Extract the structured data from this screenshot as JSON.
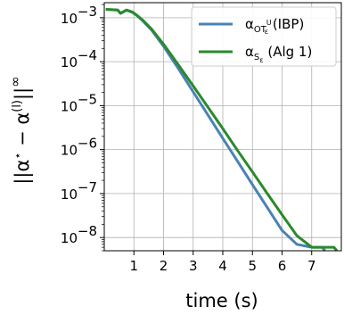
{
  "chart_data": {
    "type": "line",
    "xlabel": "time (s)",
    "ylabel": "||α* − α^(l)||∞",
    "yscale": "log",
    "xlim": [
      0,
      8
    ],
    "ylim": [
      5e-09,
      0.0022
    ],
    "xticks": [
      1,
      2,
      3,
      4,
      5,
      6,
      7
    ],
    "xtick_labels": [
      "1",
      "2",
      "3",
      "4",
      "5",
      "6",
      "7"
    ],
    "yticks": [
      1e-08,
      1e-07,
      1e-06,
      1e-05,
      0.0001,
      0.001
    ],
    "ytick_labels": [
      "10",
      "10",
      "10",
      "10",
      "10",
      "10"
    ],
    "ytick_exponents": [
      "−8",
      "−7",
      "−6",
      "−5",
      "−4",
      "−3"
    ],
    "grid": true,
    "legend_position": "top-right",
    "series": [
      {
        "name": "α_OT (IBP)",
        "legend_label_main": "α",
        "legend_label_sub": "OT",
        "legend_label_subsub": "ε",
        "legend_label_sup": "U",
        "legend_label_suffix": " (IBP)",
        "color": "#4a82b4",
        "x": [
          0.05,
          0.45,
          0.55,
          0.75,
          0.95,
          1.1,
          1.3,
          1.6,
          2.0,
          2.5,
          3.0,
          3.5,
          4.0,
          4.5,
          5.0,
          5.5,
          6.0,
          6.5,
          7.0,
          7.35,
          7.45
        ],
        "y": [
          0.00155,
          0.0015,
          0.00125,
          0.00148,
          0.00132,
          0.00112,
          0.00085,
          0.00052,
          0.000225,
          7e-05,
          2.05e-05,
          6.1e-06,
          1.8e-06,
          5.4e-07,
          1.6e-07,
          4.8e-08,
          1.45e-08,
          7e-09,
          6e-09,
          6e-09,
          5e-09
        ]
      },
      {
        "name": "α_Sε (Alg 1)",
        "legend_label_main": "α",
        "legend_label_sub": "S",
        "legend_label_subsub": "ε",
        "legend_label_sup": "",
        "legend_label_suffix": " (Alg 1)",
        "color": "#2a8a2a",
        "x": [
          0.05,
          0.45,
          0.55,
          0.75,
          0.95,
          1.1,
          1.3,
          1.6,
          2.0,
          2.5,
          3.0,
          3.5,
          4.0,
          4.5,
          5.0,
          5.5,
          6.0,
          6.5,
          7.0,
          7.5,
          7.75,
          7.85
        ],
        "y": [
          0.00155,
          0.0015,
          0.00127,
          0.0015,
          0.00135,
          0.00114,
          0.00088,
          0.00055,
          0.00025,
          8.5e-05,
          2.8e-05,
          9.2e-06,
          3e-06,
          9.5e-07,
          3.1e-07,
          1e-07,
          3.3e-08,
          1.1e-08,
          6e-09,
          6e-09,
          6e-09,
          5e-09
        ]
      }
    ]
  }
}
